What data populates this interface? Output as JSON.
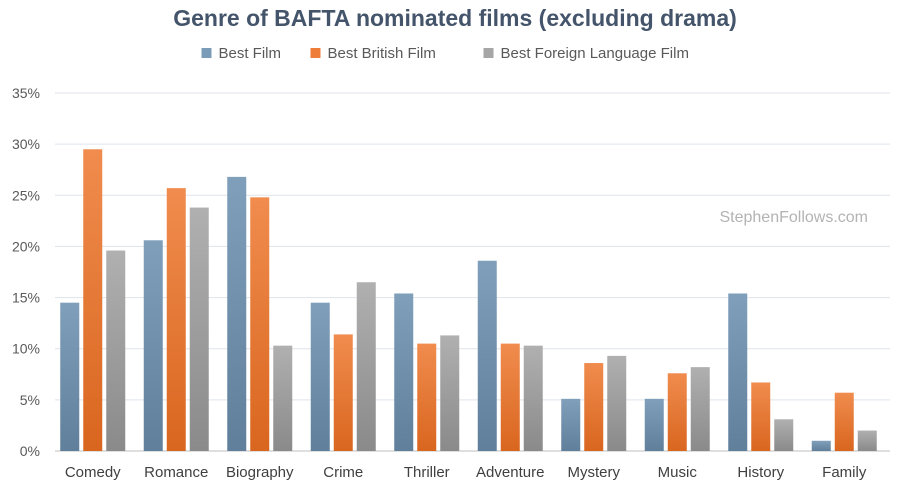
{
  "chart_data": {
    "type": "bar",
    "title": "Genre of BAFTA nominated films (excluding drama)",
    "watermark": "StephenFollows.com",
    "categories": [
      "Comedy",
      "Romance",
      "Biography",
      "Crime",
      "Thriller",
      "Adventure",
      "Mystery",
      "Music",
      "History",
      "Family"
    ],
    "series": [
      {
        "name": "Best Film",
        "color": "#7b9cb8",
        "values": [
          14.5,
          20.6,
          26.8,
          14.5,
          15.4,
          18.6,
          5.1,
          5.1,
          15.4,
          1.0
        ]
      },
      {
        "name": "Best British Film",
        "color": "#ee7d3a",
        "values": [
          29.5,
          25.7,
          24.8,
          11.4,
          10.5,
          10.5,
          8.6,
          7.6,
          6.7,
          5.7
        ]
      },
      {
        "name": "Best Foreign Language Film",
        "color": "#a6a6a6",
        "values": [
          19.6,
          23.8,
          10.3,
          16.5,
          11.3,
          10.3,
          9.3,
          8.2,
          3.1,
          2.0
        ]
      }
    ],
    "yticks": [
      "0%",
      "5%",
      "10%",
      "15%",
      "20%",
      "25%",
      "30%",
      "35%"
    ],
    "ylim": [
      0,
      35
    ],
    "ystep": 5,
    "grid": true,
    "legend": "top-center"
  }
}
